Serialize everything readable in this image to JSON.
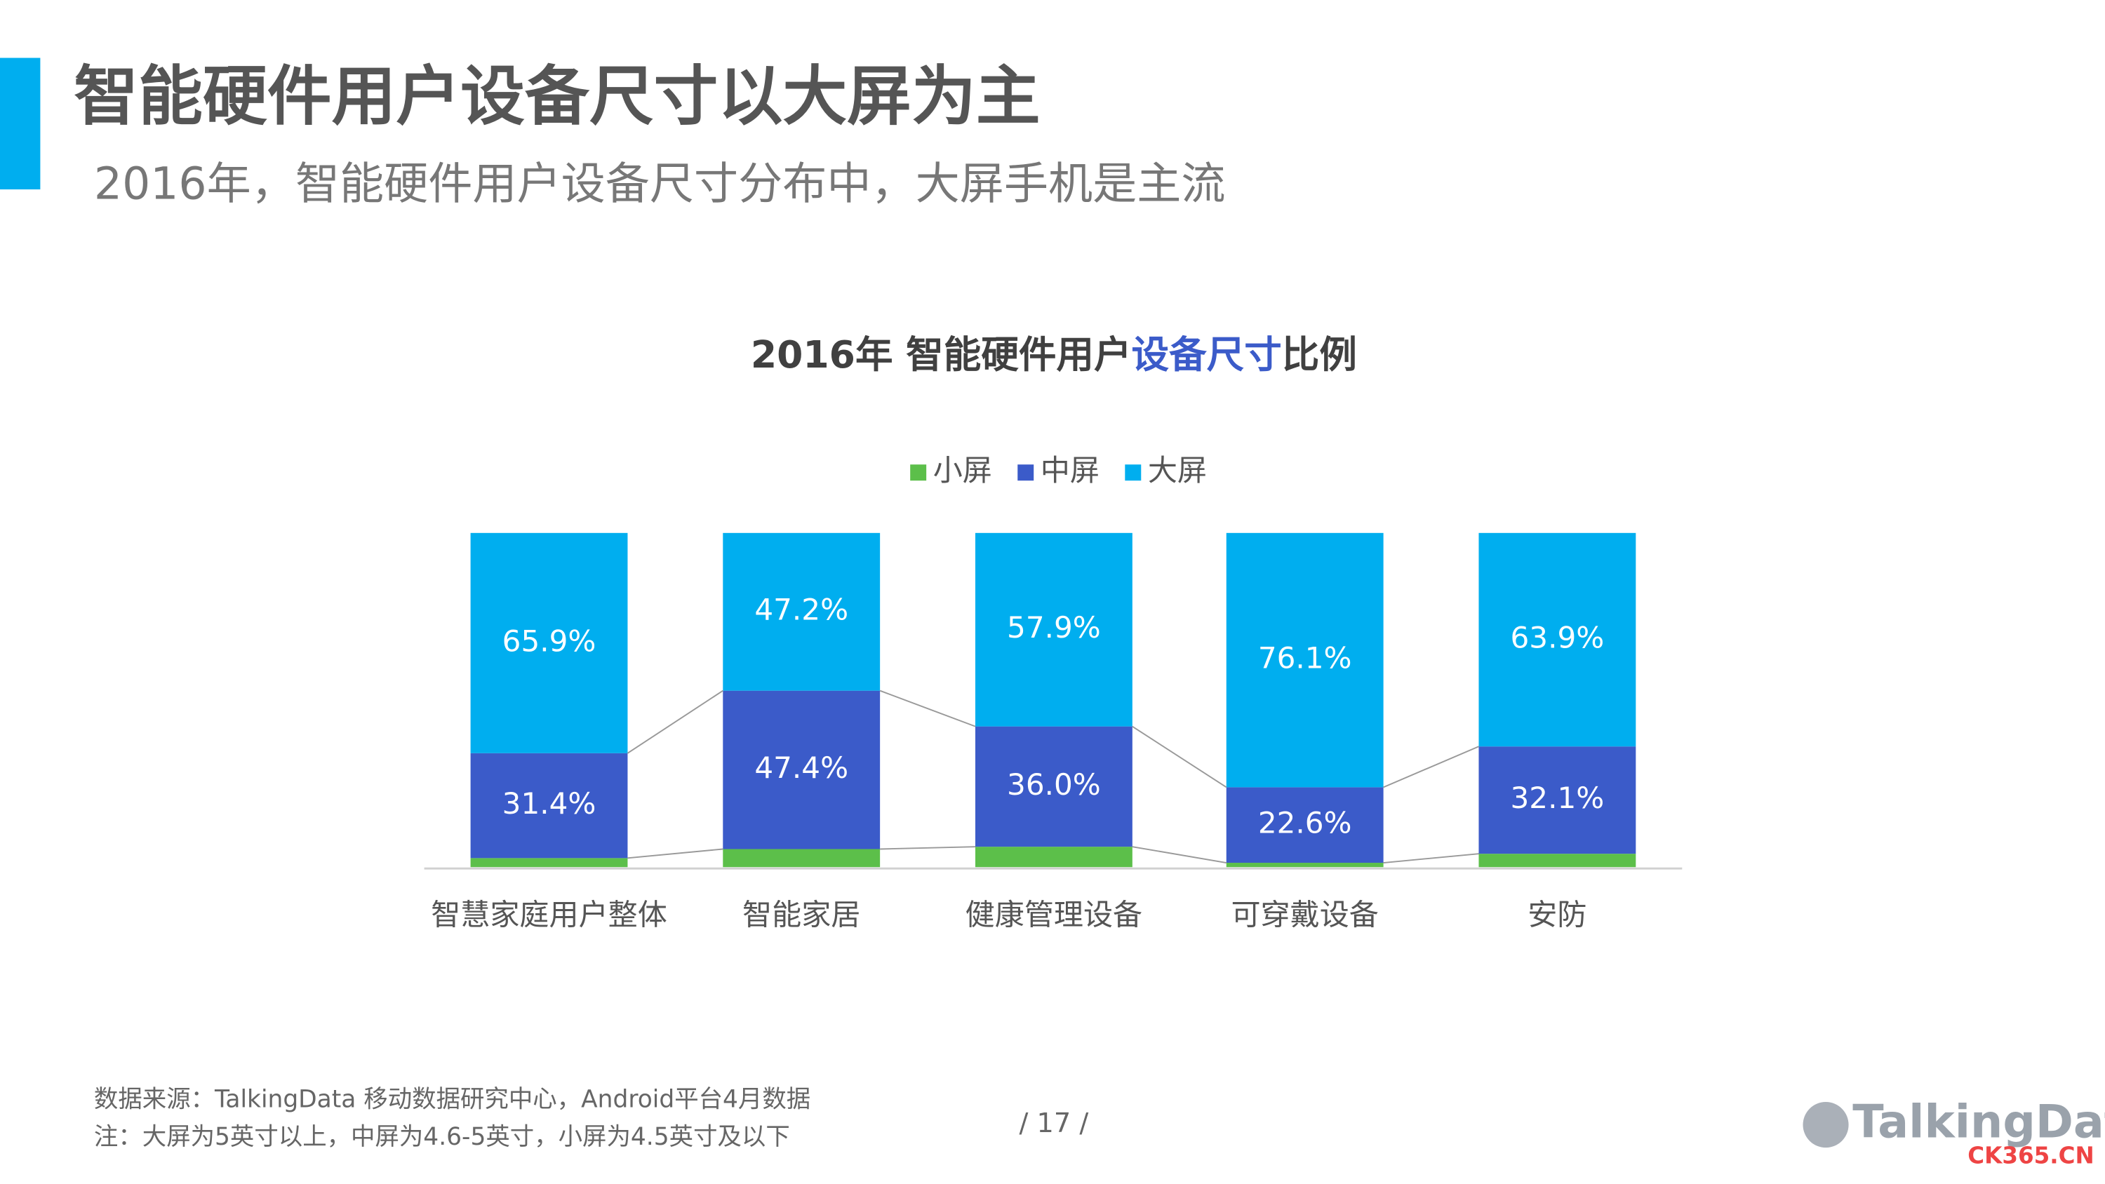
{
  "header": {
    "title": "智能硬件用户设备尺寸以大屏为主",
    "subtitle": "2016年，智能硬件用户设备尺寸分布中，大屏手机是主流"
  },
  "chart_data": {
    "type": "stacked_bar_percent",
    "title_segments": [
      {
        "text": "2016年 智能硬件用户",
        "color": "#404040"
      },
      {
        "text": "设备尺寸",
        "color": "#3b5bc9"
      },
      {
        "text": "比例",
        "color": "#404040"
      }
    ],
    "categories": [
      "智慧家庭用户整体",
      "智能家居",
      "健康管理设备",
      "可穿戴设备",
      "安防"
    ],
    "ylim": [
      0,
      100
    ],
    "series": [
      {
        "name": "小屏",
        "color": "#5cbf4a",
        "values": [
          2.7,
          5.4,
          6.1,
          1.3,
          4.0
        ]
      },
      {
        "name": "中屏",
        "color": "#3b5bc9",
        "values": [
          31.4,
          47.4,
          36.0,
          22.6,
          32.1
        ],
        "value_labels": [
          "31.4%",
          "47.4%",
          "36.0%",
          "22.6%",
          "32.1%"
        ]
      },
      {
        "name": "大屏",
        "color": "#00aeef",
        "values": [
          65.9,
          47.2,
          57.9,
          76.1,
          63.9
        ],
        "value_labels": [
          "65.9%",
          "47.2%",
          "57.9%",
          "76.1%",
          "63.9%"
        ]
      }
    ],
    "legend": "top"
  },
  "footer": {
    "source": "数据来源：TalkingData 移动数据研究中心，Android平台4月数据",
    "note": "注：大屏为5英寸以上，中屏为4.6-5英寸，小屏为4.5英寸及以下",
    "page": "/  17  /",
    "logo": "TalkingData",
    "watermark": "CK365.CN"
  }
}
